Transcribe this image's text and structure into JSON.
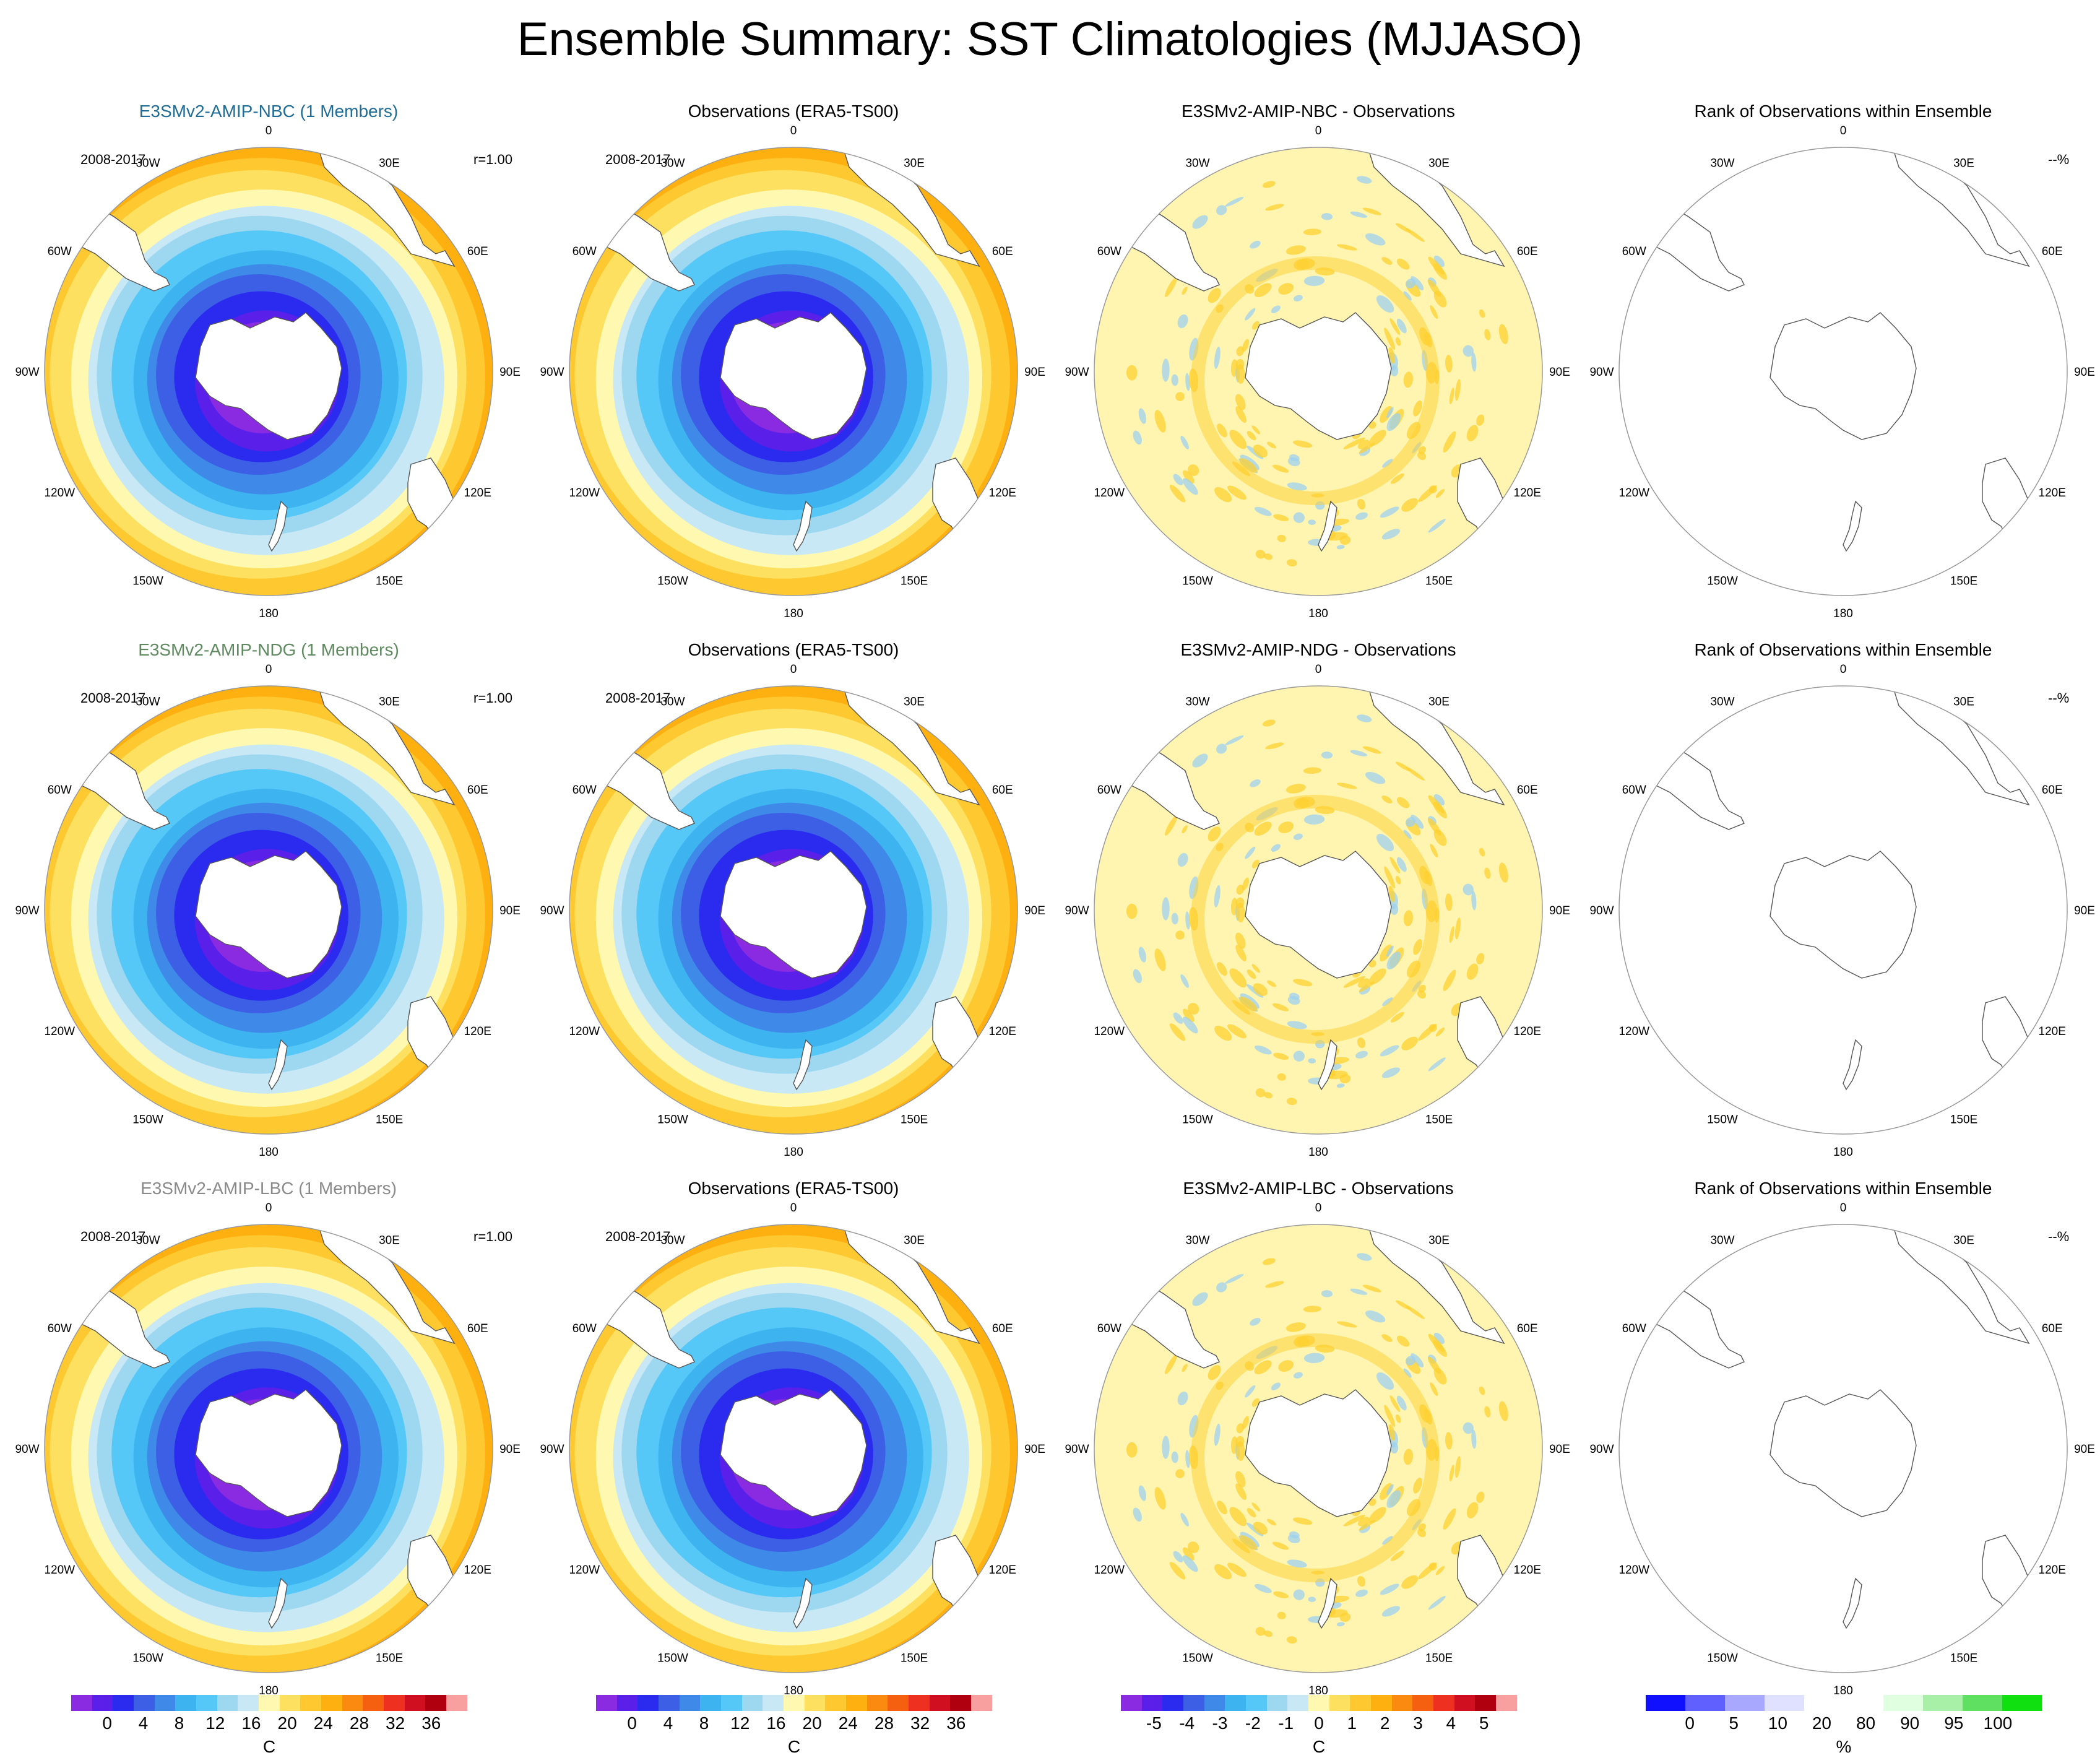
{
  "title": "Ensemble Summary: SST Climatologies (MJJASO)",
  "period": "2008-2017",
  "longitude_labels": [
    "0",
    "30E",
    "60E",
    "90E",
    "120E",
    "150E",
    "180",
    "150W",
    "120W",
    "90W",
    "60W",
    "30W"
  ],
  "rows": [
    {
      "model_title": "E3SMv2-AMIP-NBC (1 Members)",
      "model_color": "#1f6c96",
      "correlation": "r=1.00",
      "obs_title": "Observations (ERA5-TS00)",
      "diff_title": "E3SMv2-AMIP-NBC - Observations",
      "rank_title": "Rank of Observations within Ensemble",
      "rank_pct": "--%"
    },
    {
      "model_title": "E3SMv2-AMIP-NDG (1 Members)",
      "model_color": "#5f8a5f",
      "correlation": "r=1.00",
      "obs_title": "Observations (ERA5-TS00)",
      "diff_title": "E3SMv2-AMIP-NDG - Observations",
      "rank_title": "Rank of Observations within Ensemble",
      "rank_pct": "--%"
    },
    {
      "model_title": "E3SMv2-AMIP-LBC (1 Members)",
      "model_color": "#8a8a8a",
      "correlation": "r=1.00",
      "obs_title": "Observations (ERA5-TS00)",
      "diff_title": "E3SMv2-AMIP-LBC - Observations",
      "rank_title": "Rank of Observations within Ensemble",
      "rank_pct": "--%"
    }
  ],
  "colorbars": [
    {
      "unit": "C",
      "ticks": [
        "0",
        "4",
        "8",
        "12",
        "16",
        "20",
        "24",
        "28",
        "32",
        "36"
      ],
      "colors": [
        "#8a2be2",
        "#5a1fe8",
        "#2b2bf0",
        "#3c5fe6",
        "#3f8ae8",
        "#3db4f0",
        "#55c8f8",
        "#9ed8f0",
        "#c8e8f5",
        "#fff8b0",
        "#fde060",
        "#fdc830",
        "#fdb010",
        "#fa8a10",
        "#f56010",
        "#ee3020",
        "#d01020",
        "#b00010",
        "#f8a0a0"
      ]
    },
    {
      "unit": "C",
      "ticks": [
        "0",
        "4",
        "8",
        "12",
        "16",
        "20",
        "24",
        "28",
        "32",
        "36"
      ],
      "colors": [
        "#8a2be2",
        "#5a1fe8",
        "#2b2bf0",
        "#3c5fe6",
        "#3f8ae8",
        "#3db4f0",
        "#55c8f8",
        "#9ed8f0",
        "#c8e8f5",
        "#fff8b0",
        "#fde060",
        "#fdc830",
        "#fdb010",
        "#fa8a10",
        "#f56010",
        "#ee3020",
        "#d01020",
        "#b00010",
        "#f8a0a0"
      ]
    },
    {
      "unit": "C",
      "ticks": [
        "-5",
        "-4",
        "-3",
        "-2",
        "-1",
        "0",
        "1",
        "2",
        "3",
        "4",
        "5"
      ],
      "colors": [
        "#8a2be2",
        "#5a1fe8",
        "#2b2bf0",
        "#3c5fe6",
        "#3f8ae8",
        "#3db4f0",
        "#55c8f8",
        "#9ed8f0",
        "#c8e8f5",
        "#fff8b0",
        "#fde060",
        "#fdc830",
        "#fdb010",
        "#fa8a10",
        "#f56010",
        "#ee3020",
        "#d01020",
        "#b00010",
        "#f8a0a0"
      ]
    },
    {
      "unit": "%",
      "ticks": [
        "0",
        "5",
        "10",
        "20",
        "80",
        "90",
        "95",
        "100"
      ],
      "colors": [
        "#1010ff",
        "#6060ff",
        "#a8a8ff",
        "#e0e0ff",
        "#ffffff",
        "#ffffff",
        "#e0ffe0",
        "#a8f0a8",
        "#60e060",
        "#10e010"
      ]
    }
  ],
  "map_colors": {
    "land": "#ffffff",
    "coast": "#555555",
    "sst_levels": [
      "#8a2be2",
      "#5a1fe8",
      "#2b2bf0",
      "#3c5fe6",
      "#3f8ae8",
      "#3db4f0",
      "#55c8f8",
      "#9ed8f0",
      "#c8e8f5",
      "#fff8b0",
      "#fde060",
      "#fdc830",
      "#fdb010",
      "#fa8a10"
    ],
    "diff_background": "#fff5b0",
    "diff_positive": "#fdd030",
    "diff_negative": "#9ed0f0"
  }
}
